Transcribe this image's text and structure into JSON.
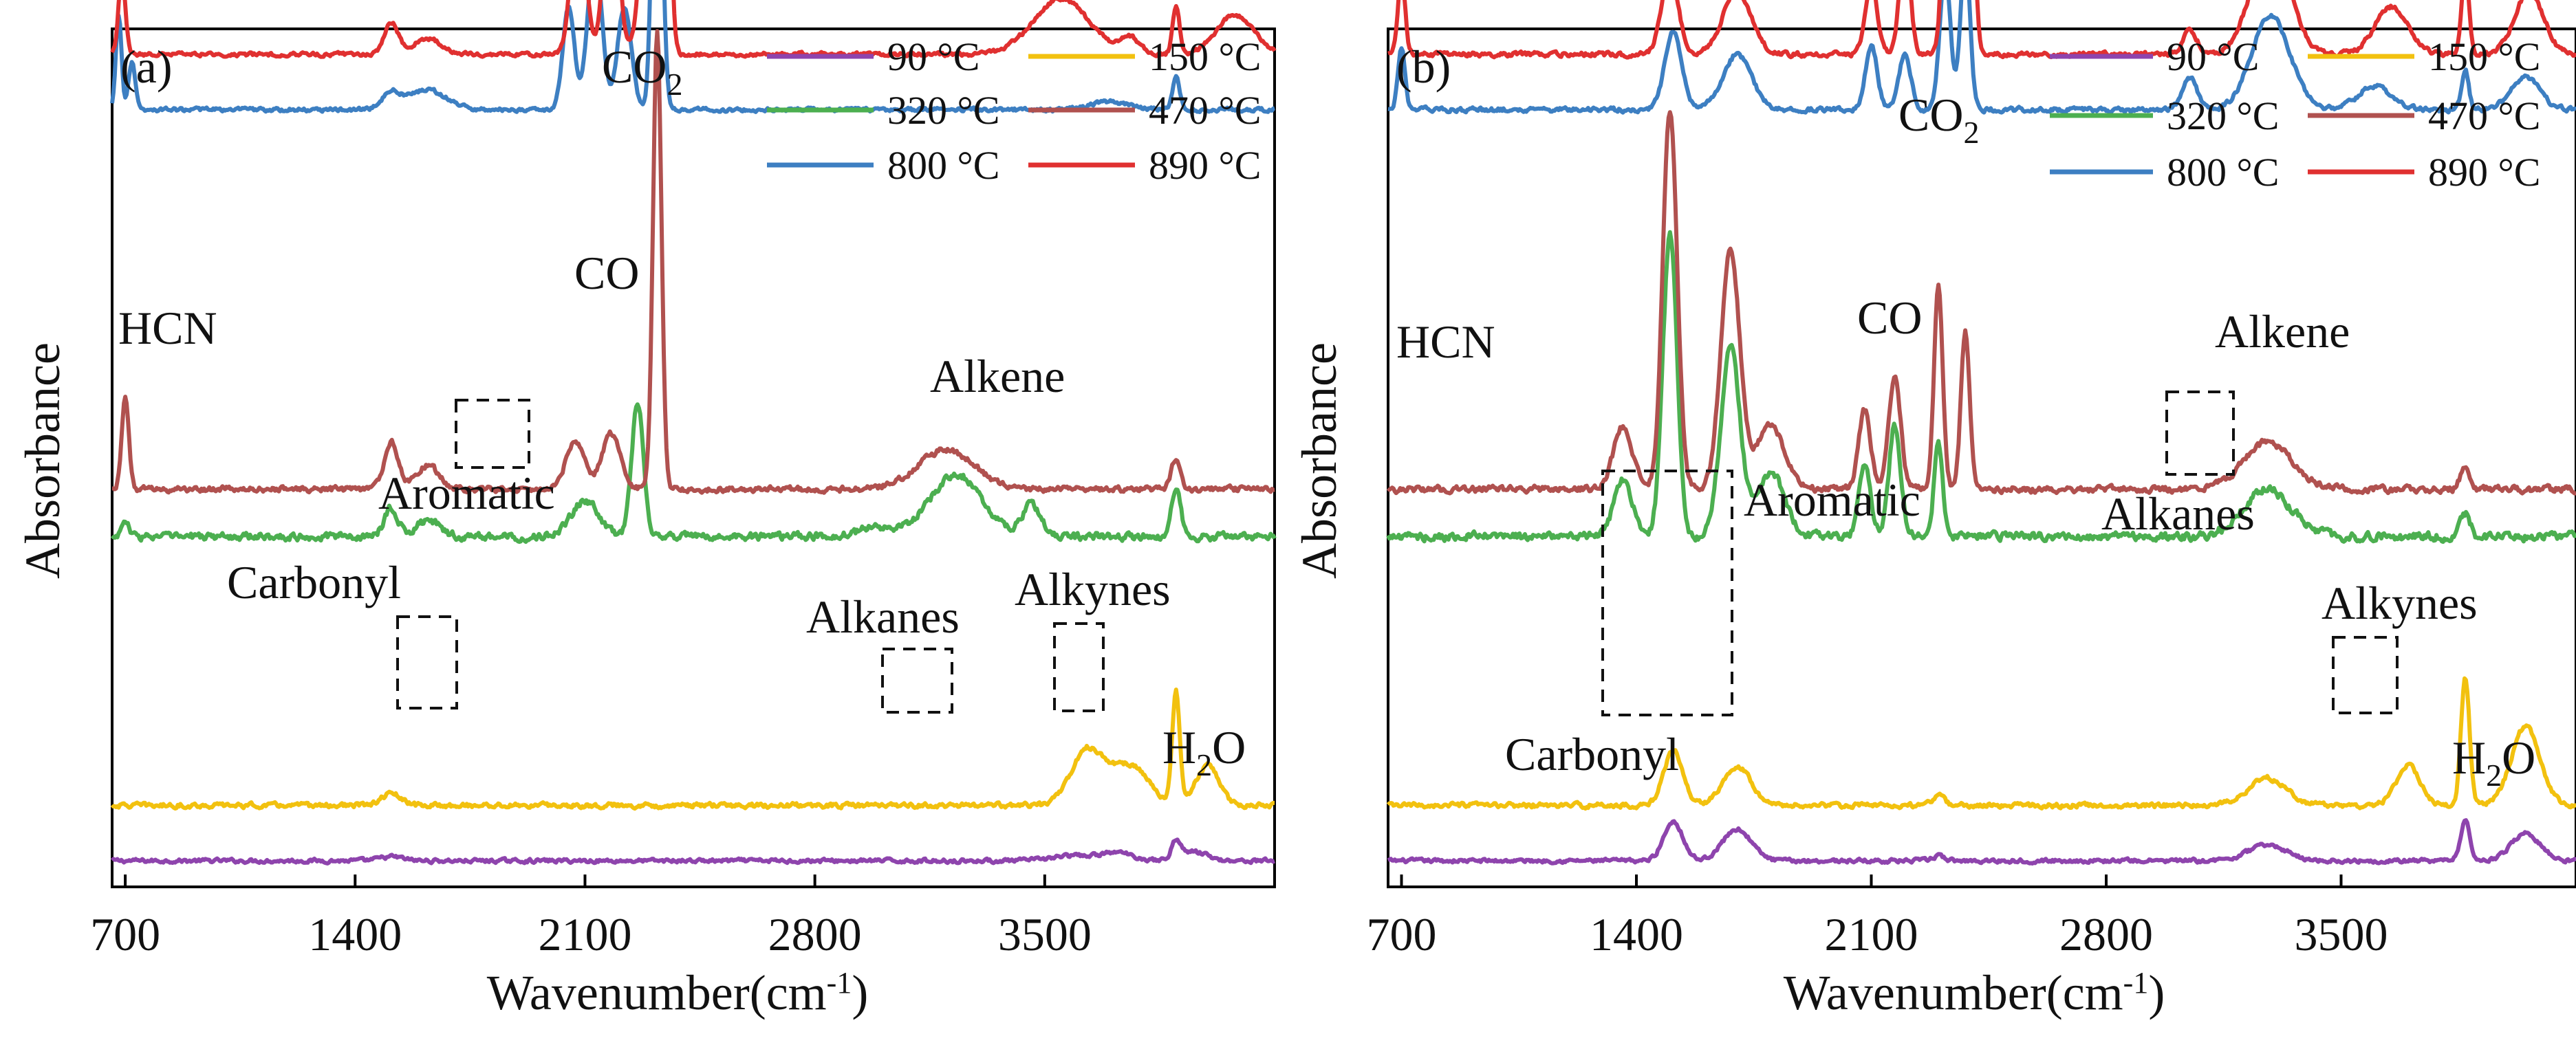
{
  "figure": {
    "title": ""
  },
  "chart_data": [
    {
      "panel_label": "(a)",
      "type": "line",
      "xlabel_main": "Wavenumber(cm",
      "xlabel_sup": "-1",
      "xlabel_close": ")",
      "ylabel": "Absorbance",
      "xlim": [
        660,
        4200
      ],
      "xticks": [
        700,
        1400,
        2100,
        2800,
        3500
      ],
      "xtick_labels": [
        "700",
        "1400",
        "2100",
        "2800",
        "3500"
      ],
      "y_ticks_shown": false,
      "legend": {
        "position": "top-right",
        "entries": [
          "90 °C",
          "150 °C",
          "320 °C",
          "470 °C",
          "800 °C",
          "890 °C"
        ]
      },
      "series": [
        {
          "name": "90 °C",
          "color": "#8e44ad",
          "baseline": 0.02,
          "noise": 0.004,
          "peaks": [
            [
              3580,
              0.006,
              90
            ],
            [
              3720,
              0.01,
              70
            ],
            [
              3900,
              0.022,
              18
            ],
            [
              3950,
              0.012,
              60
            ],
            [
              1510,
              0.005,
              50
            ]
          ]
        },
        {
          "name": "150 °C",
          "color": "#f2c10f",
          "baseline": 0.09,
          "noise": 0.005,
          "peaks": [
            [
              3630,
              0.07,
              70
            ],
            [
              3760,
              0.05,
              80
            ],
            [
              3900,
              0.14,
              16
            ],
            [
              3995,
              0.05,
              50
            ],
            [
              1510,
              0.015,
              40
            ]
          ]
        },
        {
          "name": "320 °C",
          "color": "#4caf50",
          "baseline": 0.43,
          "noise": 0.008,
          "peaks": [
            [
              700,
              0.02,
              15
            ],
            [
              1510,
              0.035,
              30
            ],
            [
              1620,
              0.02,
              50
            ],
            [
              2100,
              0.045,
              60
            ],
            [
              2260,
              0.17,
              25
            ],
            [
              2990,
              0.012,
              80
            ],
            [
              3230,
              0.08,
              110
            ],
            [
              3460,
              0.04,
              40
            ],
            [
              3900,
              0.06,
              20
            ]
          ]
        },
        {
          "name": "470 °C",
          "color": "#b0514f",
          "baseline": 0.49,
          "noise": 0.006,
          "peaks": [
            [
              700,
              0.12,
              15
            ],
            [
              1510,
              0.06,
              30
            ],
            [
              1620,
              0.03,
              50
            ],
            [
              2070,
              0.06,
              40
            ],
            [
              2180,
              0.07,
              40
            ],
            [
              2320,
              0.58,
              18
            ],
            [
              3200,
              0.05,
              120
            ],
            [
              3900,
              0.04,
              20
            ]
          ]
        },
        {
          "name": "800 °C",
          "color": "#3d7fc2",
          "baseline": 0.97,
          "noise": 0.004,
          "peaks": [
            [
              680,
              0.12,
              12
            ],
            [
              720,
              0.06,
              15
            ],
            [
              1510,
              0.02,
              40
            ],
            [
              1620,
              0.025,
              80
            ],
            [
              2050,
              0.13,
              25
            ],
            [
              2130,
              0.2,
              30
            ],
            [
              2220,
              0.13,
              30
            ],
            [
              2320,
              0.48,
              20
            ],
            [
              3700,
              0.01,
              80
            ],
            [
              3900,
              0.04,
              15
            ]
          ]
        },
        {
          "name": "890 °C",
          "color": "#e03030",
          "baseline": 1.04,
          "noise": 0.004,
          "peaks": [
            [
              690,
              0.1,
              15
            ],
            [
              1510,
              0.04,
              30
            ],
            [
              1620,
              0.02,
              60
            ],
            [
              2080,
              0.2,
              30
            ],
            [
              2180,
              0.23,
              30
            ],
            [
              2290,
              0.22,
              30
            ],
            [
              2340,
              0.65,
              20
            ],
            [
              3550,
              0.07,
              120
            ],
            [
              3760,
              0.02,
              40
            ],
            [
              3900,
              0.06,
              15
            ],
            [
              4080,
              0.05,
              80
            ]
          ]
        }
      ],
      "annotations": [
        {
          "text": "HCN",
          "sub": ""
        },
        {
          "text": "CO",
          "sub": "2"
        },
        {
          "text": "CO",
          "sub": ""
        },
        {
          "text": "Alkene",
          "sub": ""
        },
        {
          "text": "Aromatic",
          "sub": ""
        },
        {
          "text": "Carbonyl",
          "sub": ""
        },
        {
          "text": "Alkanes",
          "sub": ""
        },
        {
          "text": "Alkynes",
          "sub": ""
        },
        {
          "text": "H",
          "sub": "2",
          "after": "O"
        }
      ]
    },
    {
      "panel_label": "(b)",
      "type": "line",
      "xlabel_main": "Wavenumber(cm",
      "xlabel_sup": "-1",
      "xlabel_close": ")",
      "ylabel": "Absorbance",
      "xlim": [
        660,
        4200
      ],
      "xticks": [
        700,
        1400,
        2100,
        2800,
        3500
      ],
      "xtick_labels": [
        "700",
        "1400",
        "2100",
        "2800",
        "3500"
      ],
      "y_ticks_shown": false,
      "legend": {
        "position": "top-right",
        "entries": [
          "90 °C",
          "150 °C",
          "320 °C",
          "470 °C",
          "800 °C",
          "890 °C"
        ]
      },
      "series": [
        {
          "name": "90 °C",
          "color": "#8e44ad",
          "baseline": 0.02,
          "noise": 0.004,
          "peaks": [
            [
              1510,
              0.05,
              40
            ],
            [
              1700,
              0.04,
              60
            ],
            [
              2300,
              0.006,
              25
            ],
            [
              3280,
              0.02,
              80
            ],
            [
              3870,
              0.05,
              20
            ],
            [
              4050,
              0.035,
              60
            ]
          ]
        },
        {
          "name": "150 °C",
          "color": "#f2c10f",
          "baseline": 0.09,
          "noise": 0.005,
          "peaks": [
            [
              1510,
              0.07,
              40
            ],
            [
              1700,
              0.05,
              60
            ],
            [
              2300,
              0.012,
              25
            ],
            [
              3280,
              0.035,
              80
            ],
            [
              3700,
              0.05,
              50
            ],
            [
              3870,
              0.16,
              18
            ],
            [
              4050,
              0.1,
              60
            ]
          ]
        },
        {
          "name": "320 °C",
          "color": "#4caf50",
          "baseline": 0.43,
          "noise": 0.009,
          "peaks": [
            [
              1360,
              0.07,
              40
            ],
            [
              1500,
              0.38,
              30
            ],
            [
              1680,
              0.24,
              40
            ],
            [
              1800,
              0.08,
              60
            ],
            [
              2080,
              0.09,
              25
            ],
            [
              2170,
              0.14,
              25
            ],
            [
              2300,
              0.12,
              18
            ],
            [
              3280,
              0.06,
              100
            ],
            [
              3870,
              0.03,
              20
            ]
          ]
        },
        {
          "name": "470 °C",
          "color": "#b0514f",
          "baseline": 0.49,
          "noise": 0.007,
          "peaks": [
            [
              1360,
              0.08,
              40
            ],
            [
              1500,
              0.48,
              30
            ],
            [
              1680,
              0.3,
              40
            ],
            [
              1800,
              0.08,
              60
            ],
            [
              2080,
              0.1,
              25
            ],
            [
              2170,
              0.14,
              25
            ],
            [
              2300,
              0.26,
              18
            ],
            [
              2380,
              0.2,
              18
            ],
            [
              3280,
              0.06,
              100
            ],
            [
              3870,
              0.03,
              20
            ]
          ]
        },
        {
          "name": "800 °C",
          "color": "#3d7fc2",
          "baseline": 0.97,
          "noise": 0.005,
          "peaks": [
            [
              700,
              0.08,
              15
            ],
            [
              1510,
              0.1,
              35
            ],
            [
              1700,
              0.07,
              60
            ],
            [
              2100,
              0.08,
              25
            ],
            [
              2200,
              0.07,
              25
            ],
            [
              2320,
              0.18,
              22
            ],
            [
              2380,
              0.2,
              20
            ],
            [
              3050,
              0.04,
              30
            ],
            [
              3290,
              0.12,
              80
            ],
            [
              3600,
              0.03,
              70
            ],
            [
              3870,
              0.05,
              15
            ],
            [
              4050,
              0.04,
              60
            ]
          ]
        },
        {
          "name": "890 °C",
          "color": "#e03030",
          "baseline": 1.04,
          "noise": 0.005,
          "peaks": [
            [
              700,
              0.1,
              15
            ],
            [
              1500,
              0.1,
              35
            ],
            [
              1700,
              0.08,
              60
            ],
            [
              2100,
              0.09,
              25
            ],
            [
              2200,
              0.14,
              22
            ],
            [
              2330,
              0.4,
              20
            ],
            [
              2390,
              0.36,
              20
            ],
            [
              3050,
              0.03,
              30
            ],
            [
              3290,
              0.14,
              80
            ],
            [
              3650,
              0.06,
              70
            ],
            [
              3870,
              0.11,
              15
            ],
            [
              4060,
              0.08,
              60
            ]
          ]
        }
      ],
      "annotations": [
        {
          "text": "HCN",
          "sub": ""
        },
        {
          "text": "CO",
          "sub": "2"
        },
        {
          "text": "CO",
          "sub": ""
        },
        {
          "text": "Alkene",
          "sub": ""
        },
        {
          "text": "Alkanes",
          "sub": ""
        },
        {
          "text": "Aromatic",
          "sub": ""
        },
        {
          "text": "Carbonyl",
          "sub": ""
        },
        {
          "text": "Alkynes",
          "sub": ""
        },
        {
          "text": "H",
          "sub": "2",
          "after": "O"
        }
      ]
    }
  ]
}
